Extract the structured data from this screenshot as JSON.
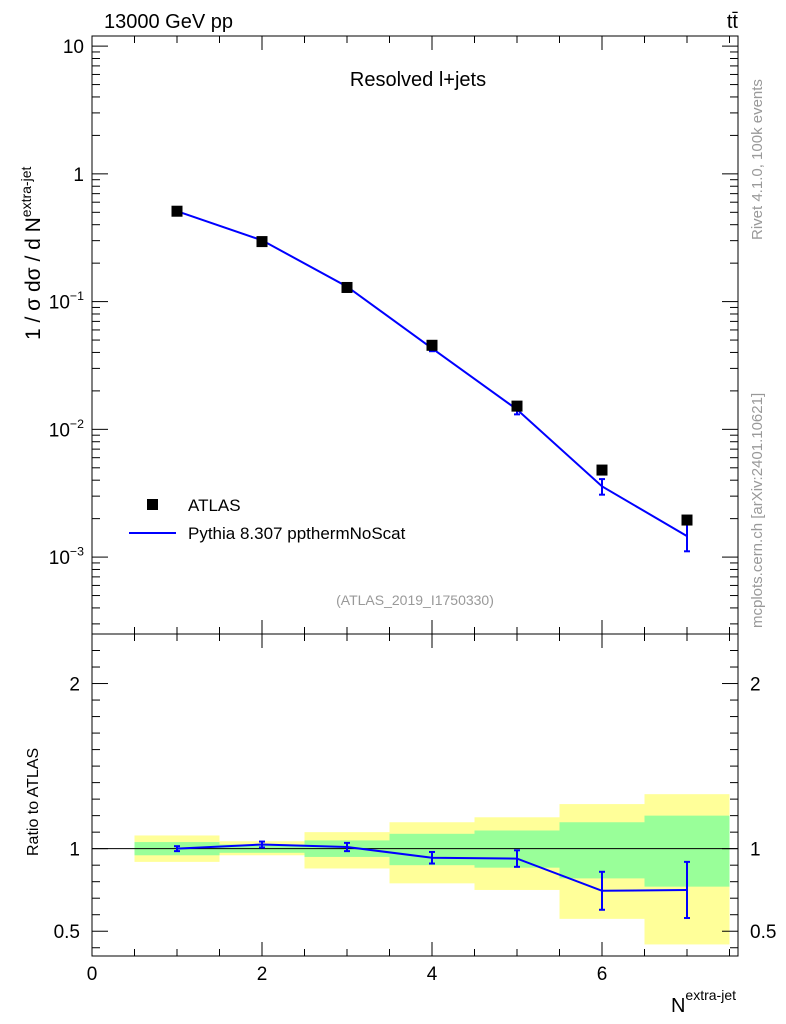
{
  "header": {
    "energy_label": "13000 GeV pp",
    "process_label": "tt̄",
    "plot_title": "Resolved l+jets",
    "analysis_tag": "(ATLAS_2019_I1750330)",
    "side_rivet": "Rivet 4.1.0,  100k events",
    "side_mcplots": "mcplots.cern.ch [arXiv:2401.10621]"
  },
  "colors": {
    "data": "#000000",
    "mc": "#0000ff",
    "band_inner": "#99ff99",
    "band_outer": "#ffff99"
  },
  "chart_data": [
    {
      "type": "scatter",
      "panel": "main",
      "ylabel": "1 / σ dσ / d N^{extra-jet}",
      "yscale": "log",
      "ylim": [
        0.00025,
        12
      ],
      "xlim": [
        0,
        7.6
      ],
      "y_ticks": [
        {
          "value": 0.001,
          "base": "10",
          "exp": "−3"
        },
        {
          "value": 0.01,
          "base": "10",
          "exp": "−2"
        },
        {
          "value": 0.1,
          "base": "10",
          "exp": "−1"
        },
        {
          "value": 1,
          "base": "1",
          "exp": ""
        },
        {
          "value": 10,
          "base": "10",
          "exp": ""
        }
      ],
      "legend": {
        "data_label": "ATLAS",
        "mc_label": "Pythia 8.307 ppthermNoScat",
        "position": "lower-left"
      },
      "series": [
        {
          "name": "ATLAS",
          "x": [
            1,
            2,
            3,
            4,
            5,
            6,
            7
          ],
          "y": [
            0.51,
            0.295,
            0.129,
            0.0455,
            0.0152,
            0.0048,
            0.00195
          ]
        },
        {
          "name": "Pythia 8.307 ppthermNoScat",
          "x": [
            1,
            2,
            3,
            4,
            5,
            6,
            7
          ],
          "y": [
            0.51,
            0.302,
            0.131,
            0.0431,
            0.0143,
            0.00358,
            0.00146
          ],
          "err": [
            0.006,
            0.005,
            0.003,
            0.0022,
            0.0012,
            0.0005,
            0.00035
          ]
        }
      ]
    },
    {
      "type": "line",
      "panel": "ratio",
      "ylabel": "Ratio to ATLAS",
      "xlabel": "N^{extra-jet}",
      "ylim": [
        0.35,
        2.3
      ],
      "xlim": [
        0,
        7.6
      ],
      "x_ticks": [
        0,
        2,
        4,
        6
      ],
      "y_ticks": [
        0.5,
        1,
        2
      ],
      "bins": [
        [
          0.5,
          1.5
        ],
        [
          1.5,
          2.5
        ],
        [
          2.5,
          3.5
        ],
        [
          3.5,
          4.5
        ],
        [
          4.5,
          5.5
        ],
        [
          5.5,
          6.5
        ],
        [
          6.5,
          7.5
        ]
      ],
      "band_inner": [
        [
          0.96,
          1.04
        ],
        [
          0.975,
          1.025
        ],
        [
          0.95,
          1.05
        ],
        [
          0.9,
          1.09
        ],
        [
          0.885,
          1.11
        ],
        [
          0.82,
          1.16
        ],
        [
          0.77,
          1.2
        ]
      ],
      "band_outer": [
        [
          0.92,
          1.08
        ],
        [
          0.96,
          1.045
        ],
        [
          0.88,
          1.1
        ],
        [
          0.79,
          1.16
        ],
        [
          0.75,
          1.19
        ],
        [
          0.575,
          1.27
        ],
        [
          0.42,
          1.33
        ]
      ],
      "series": [
        {
          "name": "Pythia 8.307 ppthermNoScat",
          "x": [
            1,
            2,
            3,
            4,
            5,
            6,
            7
          ],
          "y": [
            1.0,
            1.025,
            1.01,
            0.945,
            0.94,
            0.745,
            0.75
          ],
          "err": [
            0.015,
            0.018,
            0.025,
            0.035,
            0.05,
            0.115,
            0.17
          ]
        }
      ]
    }
  ]
}
